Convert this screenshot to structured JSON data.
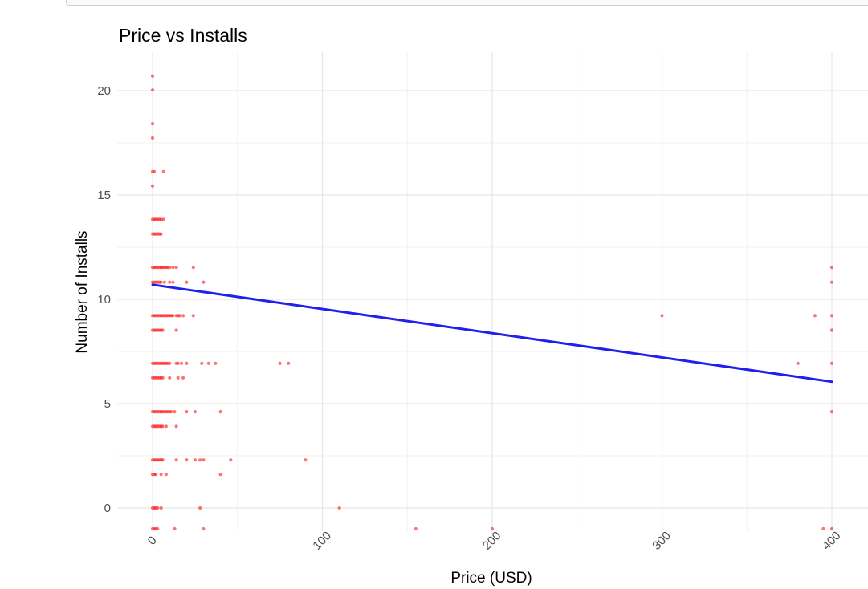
{
  "chart_data": {
    "type": "scatter",
    "title": "Price vs Installs",
    "xlabel": "Price (USD)",
    "ylabel": "Number of Installs",
    "xlim": [
      -8,
      420
    ],
    "ylim": [
      -1,
      21.5
    ],
    "x_ticks": [
      0,
      100,
      200,
      300,
      400
    ],
    "y_ticks": [
      0,
      5,
      10,
      15,
      20
    ],
    "x_tick_labels": [
      "0",
      "100",
      "200",
      "300",
      "400"
    ],
    "y_tick_labels": [
      "0",
      "5",
      "10",
      "15",
      "20"
    ],
    "grid": true,
    "legend": "none",
    "point_color": "#ff0000",
    "line_color": "#2020ee",
    "trend_line": {
      "x": [
        0,
        400
      ],
      "y": [
        10.7,
        6.05
      ]
    },
    "series": [
      {
        "points": [
          [
            0,
            20.7
          ],
          [
            0,
            20.03
          ],
          [
            0,
            18.42
          ],
          [
            0,
            17.73
          ],
          [
            0,
            16.12
          ],
          [
            1,
            16.12
          ],
          [
            6.5,
            16.12
          ],
          [
            0,
            15.43
          ],
          [
            0,
            13.83
          ],
          [
            1,
            13.83
          ],
          [
            2,
            13.83
          ],
          [
            3,
            13.83
          ],
          [
            4,
            13.83
          ],
          [
            5,
            13.83
          ],
          [
            6.5,
            13.83
          ],
          [
            0,
            13.13
          ],
          [
            1,
            13.13
          ],
          [
            2,
            13.13
          ],
          [
            3,
            13.13
          ],
          [
            4,
            13.13
          ],
          [
            5,
            13.13
          ],
          [
            0,
            11.53
          ],
          [
            1,
            11.53
          ],
          [
            2,
            11.53
          ],
          [
            3,
            11.53
          ],
          [
            4,
            11.53
          ],
          [
            5,
            11.53
          ],
          [
            6,
            11.53
          ],
          [
            7,
            11.53
          ],
          [
            8,
            11.53
          ],
          [
            9,
            11.53
          ],
          [
            10,
            11.53
          ],
          [
            12,
            11.53
          ],
          [
            14,
            11.53
          ],
          [
            24,
            11.53
          ],
          [
            0,
            10.82
          ],
          [
            1,
            10.82
          ],
          [
            2,
            10.82
          ],
          [
            3,
            10.82
          ],
          [
            4,
            10.82
          ],
          [
            5,
            10.82
          ],
          [
            7,
            10.82
          ],
          [
            10,
            10.82
          ],
          [
            12,
            10.82
          ],
          [
            20,
            10.82
          ],
          [
            30,
            10.82
          ],
          [
            0,
            9.22
          ],
          [
            1,
            9.22
          ],
          [
            2,
            9.22
          ],
          [
            3,
            9.22
          ],
          [
            4,
            9.22
          ],
          [
            5,
            9.22
          ],
          [
            6,
            9.22
          ],
          [
            7,
            9.22
          ],
          [
            8,
            9.22
          ],
          [
            9,
            9.22
          ],
          [
            10,
            9.22
          ],
          [
            11,
            9.22
          ],
          [
            12,
            9.22
          ],
          [
            14,
            9.22
          ],
          [
            15,
            9.22
          ],
          [
            16,
            9.22
          ],
          [
            18,
            9.22
          ],
          [
            24,
            9.22
          ],
          [
            0,
            8.52
          ],
          [
            1,
            8.52
          ],
          [
            2,
            8.52
          ],
          [
            3,
            8.52
          ],
          [
            4,
            8.52
          ],
          [
            5,
            8.52
          ],
          [
            6,
            8.52
          ],
          [
            14,
            8.52
          ],
          [
            0,
            6.93
          ],
          [
            1,
            6.93
          ],
          [
            2,
            6.93
          ],
          [
            3,
            6.93
          ],
          [
            4,
            6.93
          ],
          [
            5,
            6.93
          ],
          [
            6,
            6.93
          ],
          [
            7,
            6.93
          ],
          [
            8,
            6.93
          ],
          [
            9,
            6.93
          ],
          [
            10,
            6.93
          ],
          [
            14,
            6.93
          ],
          [
            15,
            6.93
          ],
          [
            17,
            6.93
          ],
          [
            20,
            6.93
          ],
          [
            29,
            6.93
          ],
          [
            33,
            6.93
          ],
          [
            37,
            6.93
          ],
          [
            75,
            6.93
          ],
          [
            80,
            6.93
          ],
          [
            0,
            6.24
          ],
          [
            1,
            6.24
          ],
          [
            2,
            6.24
          ],
          [
            3,
            6.24
          ],
          [
            4,
            6.24
          ],
          [
            5,
            6.24
          ],
          [
            6,
            6.24
          ],
          [
            10,
            6.24
          ],
          [
            15,
            6.24
          ],
          [
            18,
            6.24
          ],
          [
            0,
            4.61
          ],
          [
            1,
            4.61
          ],
          [
            2,
            4.61
          ],
          [
            3,
            4.61
          ],
          [
            4,
            4.61
          ],
          [
            5,
            4.61
          ],
          [
            6,
            4.61
          ],
          [
            7,
            4.61
          ],
          [
            8,
            4.61
          ],
          [
            9,
            4.61
          ],
          [
            10,
            4.61
          ],
          [
            11,
            4.61
          ],
          [
            13,
            4.61
          ],
          [
            20,
            4.61
          ],
          [
            25,
            4.61
          ],
          [
            40,
            4.61
          ],
          [
            0,
            3.91
          ],
          [
            1,
            3.91
          ],
          [
            2,
            3.91
          ],
          [
            3,
            3.91
          ],
          [
            4,
            3.91
          ],
          [
            5,
            3.91
          ],
          [
            6,
            3.91
          ],
          [
            8,
            3.91
          ],
          [
            14,
            3.91
          ],
          [
            0,
            2.3
          ],
          [
            1,
            2.3
          ],
          [
            2,
            2.3
          ],
          [
            3,
            2.3
          ],
          [
            4,
            2.3
          ],
          [
            5,
            2.3
          ],
          [
            6,
            2.3
          ],
          [
            14,
            2.3
          ],
          [
            20,
            2.3
          ],
          [
            25,
            2.3
          ],
          [
            28,
            2.3
          ],
          [
            30,
            2.3
          ],
          [
            46,
            2.3
          ],
          [
            90,
            2.3
          ],
          [
            0,
            1.61
          ],
          [
            1,
            1.61
          ],
          [
            2,
            1.61
          ],
          [
            5,
            1.61
          ],
          [
            8,
            1.61
          ],
          [
            40,
            1.61
          ],
          [
            0,
            0.0
          ],
          [
            1,
            0.0
          ],
          [
            2,
            0.0
          ],
          [
            3,
            0.0
          ],
          [
            5,
            0.0
          ],
          [
            28,
            0.0
          ],
          [
            110,
            0.0
          ],
          [
            0,
            -1.0
          ],
          [
            1,
            -1.0
          ],
          [
            2,
            -1.0
          ],
          [
            3,
            -1.0
          ],
          [
            13,
            -1.0
          ],
          [
            30,
            -1.0
          ],
          [
            155,
            -1.0
          ],
          [
            200,
            -1.0
          ],
          [
            300,
            9.22
          ],
          [
            380,
            6.93
          ],
          [
            390,
            9.22
          ],
          [
            400,
            11.53
          ],
          [
            400,
            10.82
          ],
          [
            400,
            9.22
          ],
          [
            400,
            8.52
          ],
          [
            400,
            6.93
          ],
          [
            400,
            4.61
          ],
          [
            395,
            -1.0
          ],
          [
            400,
            -1.0
          ]
        ]
      }
    ]
  }
}
